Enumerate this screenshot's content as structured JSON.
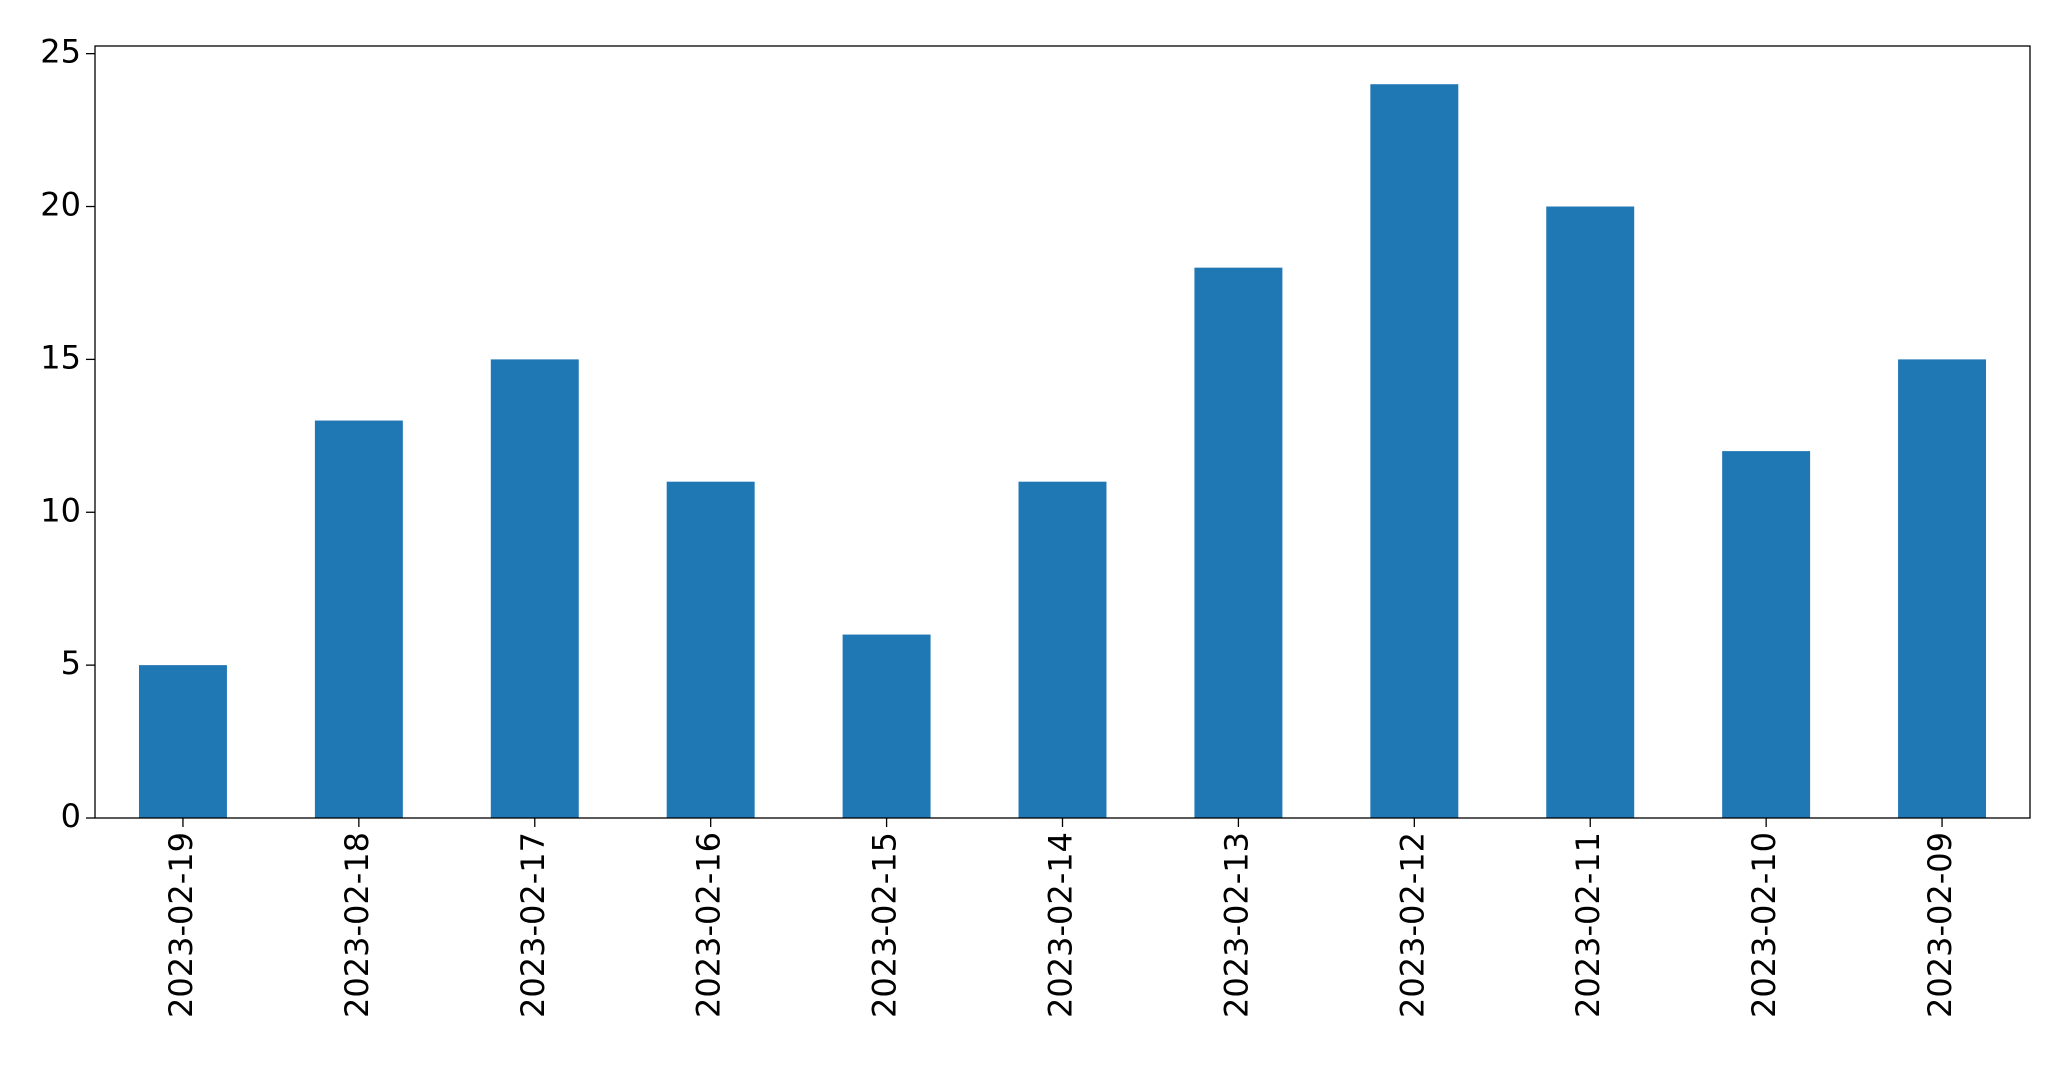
{
  "chart_data": {
    "type": "bar",
    "categories": [
      "2023-02-19",
      "2023-02-18",
      "2023-02-17",
      "2023-02-16",
      "2023-02-15",
      "2023-02-14",
      "2023-02-13",
      "2023-02-12",
      "2023-02-11",
      "2023-02-10",
      "2023-02-09"
    ],
    "values": [
      5,
      13,
      15,
      11,
      6,
      11,
      18,
      24,
      20,
      12,
      15
    ],
    "color": "#1f77b4",
    "ylim": [
      0,
      25.25
    ],
    "yticks": [
      0,
      5,
      10,
      15,
      20,
      25
    ],
    "grid": false
  }
}
